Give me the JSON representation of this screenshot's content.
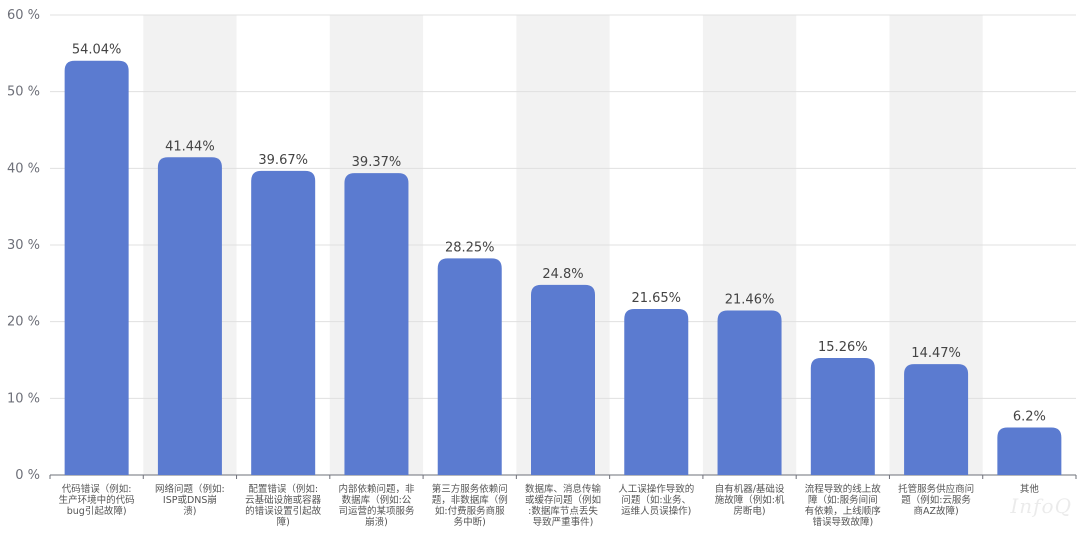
{
  "chart_data": {
    "type": "bar",
    "title": "",
    "xlabel": "",
    "ylabel": "",
    "ylim": [
      0,
      60
    ],
    "yticks": [
      "0 %",
      "10 %",
      "20 %",
      "30 %",
      "40 %",
      "50 %",
      "60 %"
    ],
    "grid": true,
    "legend": "none",
    "bar_color": "#5b7bd0",
    "band_color": "#f2f2f2",
    "categories": [
      [
        "代码错误（例如:",
        "生产环境中的代码",
        "bug引起故障)"
      ],
      [
        "网络问题（例如:",
        "ISP或DNS崩",
        "溃)"
      ],
      [
        "配置错误（例如:",
        "云基础设施或容器",
        "的错误设置引起故",
        "障)"
      ],
      [
        "内部依赖问题，非",
        "数据库（例如:公",
        "司运营的某项服务",
        "崩溃)"
      ],
      [
        "第三方服务依赖问",
        "题，非数据库（例",
        "如:付费服务商服",
        "务中断)"
      ],
      [
        "数据库、消息传输",
        "或缓存问题（例如",
        ":数据库节点丢失",
        "导致严重事件)"
      ],
      [
        "人工误操作导致的",
        "问题（如:业务、",
        "运维人员误操作)"
      ],
      [
        "自有机器/基础设",
        "施故障（例如:机",
        "房断电)"
      ],
      [
        "流程导致的线上故",
        "障（如:服务间间",
        "有依赖，上线顺序",
        "错误导致故障)"
      ],
      [
        "托管服务供应商问",
        "题（例如:云服务",
        "商AZ故障)"
      ],
      [
        "其他"
      ]
    ],
    "values": [
      54.04,
      41.44,
      39.67,
      39.37,
      28.25,
      24.8,
      21.65,
      21.46,
      15.26,
      14.47,
      6.2
    ],
    "value_labels": [
      "54.04%",
      "41.44%",
      "39.67%",
      "39.37%",
      "28.25%",
      "24.8%",
      "21.65%",
      "21.46%",
      "15.26%",
      "14.47%",
      "6.2%"
    ]
  },
  "watermark": "InfoQ"
}
